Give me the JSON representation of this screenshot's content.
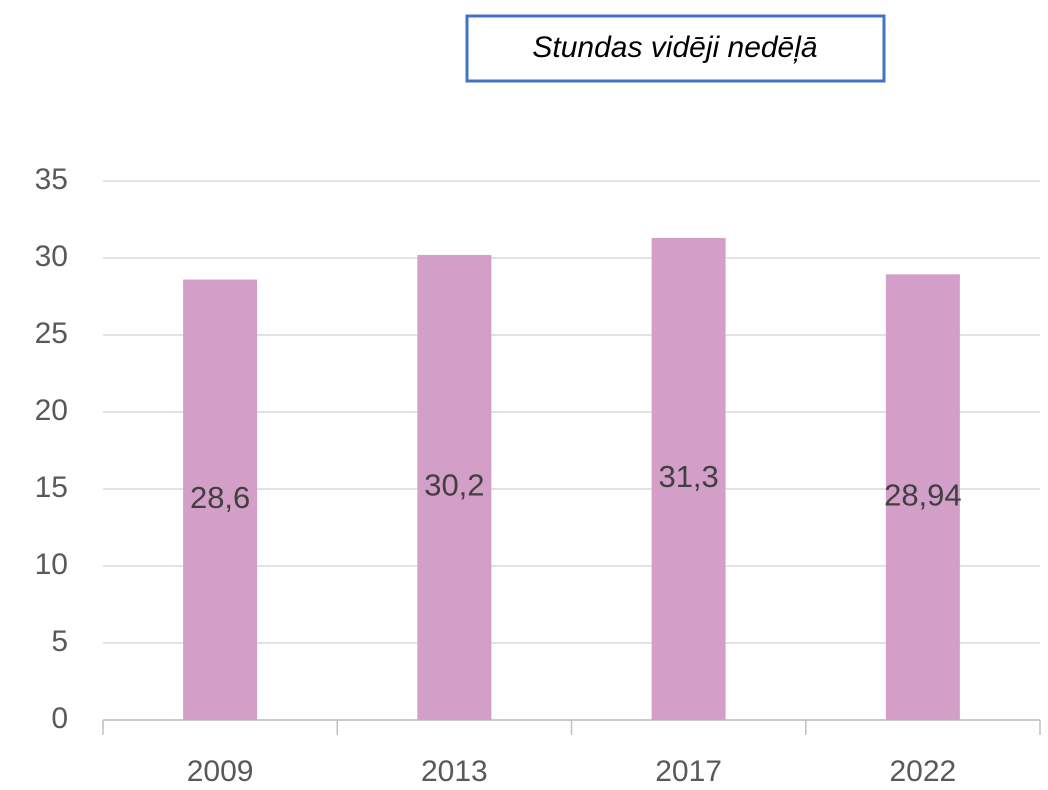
{
  "chart_data": {
    "type": "bar",
    "title": "Stundas vidēji nedēļā",
    "categories": [
      "2009",
      "2013",
      "2017",
      "2022"
    ],
    "values": [
      28.6,
      30.2,
      31.3,
      28.94
    ],
    "value_labels": [
      "28,6",
      "30,2",
      "31,3",
      "28,94"
    ],
    "color": "#d39fc8",
    "ylim": [
      0,
      35
    ],
    "yticks": [
      0,
      5,
      10,
      15,
      20,
      25,
      30,
      35
    ],
    "grid": true
  }
}
